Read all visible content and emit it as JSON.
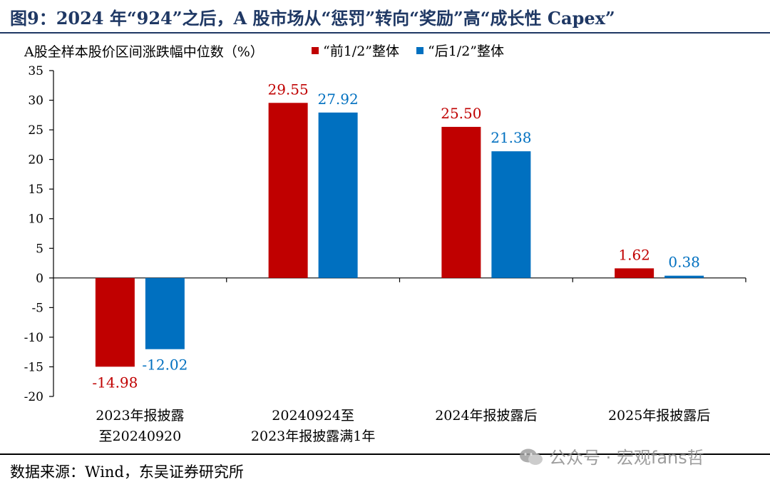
{
  "title": "图9：2024 年“924”之后，A 股市场从“惩罚”转向“奖励”高“成长性 Capex”",
  "source": "数据来源：Wind，东吴证券研究所",
  "watermark": "公众号 · 宏观fans哲",
  "colors": {
    "series_1": "#C00000",
    "series_2": "#0070C0",
    "title": "#1F3864"
  },
  "chart_data": {
    "type": "bar",
    "ylabel": "A股全样本股价区间涨跌幅中位数（%）",
    "categories": [
      [
        "2023年报披露",
        "至20240920"
      ],
      [
        "20240924至",
        "2023年报披露满1年"
      ],
      [
        "2024年报披露后"
      ],
      [
        "2025年报披露后"
      ]
    ],
    "series": [
      {
        "name": "“前1/2”整体",
        "values": [
          -14.98,
          29.55,
          25.5,
          1.62
        ],
        "labels": [
          "-14.98",
          "29.55",
          "25.50",
          "1.62"
        ]
      },
      {
        "name": "“后1/2”整体",
        "values": [
          -12.02,
          27.92,
          21.38,
          0.38
        ],
        "labels": [
          "-12.02",
          "27.92",
          "21.38",
          "0.38"
        ]
      }
    ],
    "ylim": [
      -20,
      35
    ],
    "yticks": [
      35,
      30,
      25,
      20,
      15,
      10,
      5,
      0,
      -5,
      -10,
      -15,
      -20
    ],
    "ytick_labels": [
      "35",
      "30",
      "25",
      "20",
      "15",
      "10",
      "5",
      "0",
      "-5",
      "-10",
      "-15",
      "-20"
    ],
    "legend_position": "top-right",
    "grid": false
  }
}
